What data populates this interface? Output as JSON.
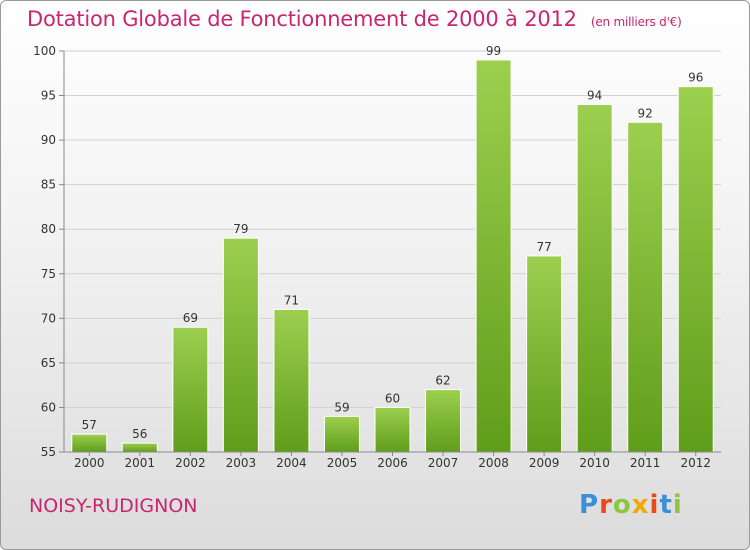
{
  "header": {
    "title": "Dotation Globale de Fonctionnement de 2000 à 2012",
    "unit": "(en milliers d'€)"
  },
  "footer": {
    "commune": "NOISY-RUDIGNON",
    "logo": "Proxiti"
  },
  "colors": {
    "title": "#c8266f",
    "bar_top": "#9dcf4f",
    "bar_bottom": "#5f9e1a"
  },
  "chart_data": {
    "type": "bar",
    "title": "Dotation Globale de Fonctionnement de 2000 à 2012",
    "subtitle": "(en milliers d'€)",
    "categories": [
      "2000",
      "2001",
      "2002",
      "2003",
      "2004",
      "2005",
      "2006",
      "2007",
      "2008",
      "2009",
      "2010",
      "2011",
      "2012"
    ],
    "values": [
      57,
      56,
      69,
      79,
      71,
      59,
      60,
      62,
      99,
      77,
      94,
      92,
      96
    ],
    "ylim": [
      55,
      100
    ],
    "yticks": [
      55,
      60,
      65,
      70,
      75,
      80,
      85,
      90,
      95,
      100
    ],
    "grid": true,
    "xlabel": "",
    "ylabel": ""
  }
}
